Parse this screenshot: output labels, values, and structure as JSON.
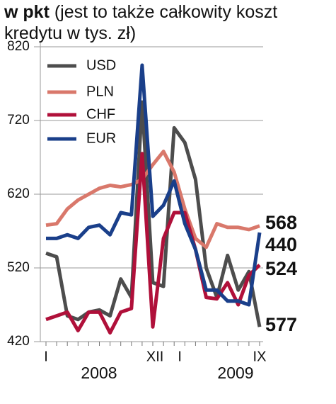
{
  "chart_data": {
    "type": "line",
    "title": "w pkt",
    "subtitle": "(jest to także całkowity koszt kredytu w tys. zł)",
    "categories": [
      "I",
      null,
      null,
      null,
      null,
      null,
      null,
      null,
      null,
      null,
      null,
      "XII",
      "I",
      null,
      null,
      null,
      null,
      null,
      null,
      null,
      "IX"
    ],
    "annotations": [
      "2008",
      "2009"
    ],
    "series": [
      {
        "name": "USD",
        "color": "#4d4d4d",
        "values": [
          540,
          535,
          455,
          450,
          460,
          463,
          455,
          505,
          480,
          745,
          500,
          495,
          710,
          690,
          640,
          520,
          480,
          537,
          490,
          515,
          440
        ]
      },
      {
        "name": "PLN",
        "color": "#d9786b",
        "values": [
          578,
          580,
          600,
          612,
          620,
          628,
          632,
          630,
          633,
          640,
          660,
          678,
          650,
          600,
          560,
          548,
          580,
          575,
          575,
          572,
          577
        ]
      },
      {
        "name": "CHF",
        "color": "#b0103a",
        "values": [
          450,
          455,
          460,
          435,
          460,
          460,
          432,
          460,
          465,
          675,
          440,
          560,
          595,
          595,
          545,
          480,
          478,
          500,
          470,
          510,
          524
        ]
      },
      {
        "name": "EUR",
        "color": "#1a3f8a",
        "values": [
          560,
          560,
          565,
          560,
          575,
          578,
          565,
          595,
          592,
          795,
          590,
          605,
          638,
          580,
          545,
          490,
          490,
          475,
          475,
          470,
          568
        ]
      }
    ],
    "ylim": [
      420,
      820
    ],
    "yticks": [
      420,
      520,
      620,
      720,
      820
    ],
    "grid": true
  }
}
